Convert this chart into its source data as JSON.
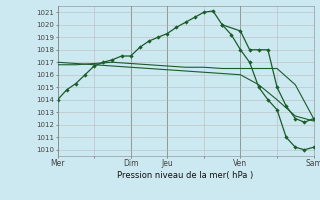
{
  "title": "Pression niveau de la mer( hPa )",
  "bg_color": "#cce8f0",
  "grid_color": "#bbbbbb",
  "line_color": "#1a5c2a",
  "ylim": [
    1009.5,
    1021.5
  ],
  "yticks": [
    1010,
    1011,
    1012,
    1013,
    1014,
    1015,
    1016,
    1017,
    1018,
    1019,
    1020,
    1021
  ],
  "day_labels": [
    "Mer",
    "",
    "Dim",
    "Jeu",
    "",
    "Ven",
    "",
    "Sam"
  ],
  "day_positions": [
    0,
    1,
    2,
    3,
    4,
    5,
    6,
    7
  ],
  "vline_positions": [
    0,
    2,
    3,
    5,
    7
  ],
  "series1_x": [
    0,
    0.25,
    0.5,
    0.75,
    1.0,
    1.25,
    1.5,
    1.75,
    2.0,
    2.25,
    2.5,
    2.75,
    3.0,
    3.25,
    3.5,
    3.75,
    4.0,
    4.25,
    4.5,
    5.0,
    5.25,
    5.5,
    5.75,
    6.0,
    6.25,
    6.5,
    6.75,
    7.0
  ],
  "series1_y": [
    1014.0,
    1014.8,
    1015.3,
    1016.0,
    1016.7,
    1017.0,
    1017.2,
    1017.5,
    1017.5,
    1018.2,
    1018.7,
    1019.0,
    1019.3,
    1019.8,
    1020.2,
    1020.6,
    1021.0,
    1021.1,
    1020.0,
    1019.5,
    1018.0,
    1018.0,
    1018.0,
    1015.0,
    1013.5,
    1012.5,
    1012.2,
    1012.5
  ],
  "series2_x": [
    0,
    0.5,
    1.0,
    1.5,
    2.0,
    2.5,
    3.0,
    3.5,
    4.0,
    4.5,
    5.0,
    5.5,
    6.0,
    6.5,
    7.0
  ],
  "series2_y": [
    1016.8,
    1016.8,
    1016.9,
    1017.0,
    1016.9,
    1016.8,
    1016.7,
    1016.6,
    1016.6,
    1016.5,
    1016.5,
    1016.5,
    1016.5,
    1015.2,
    1012.5
  ],
  "series3_x": [
    0,
    0.5,
    1.0,
    1.5,
    2.0,
    2.5,
    3.0,
    3.5,
    4.0,
    4.5,
    5.0,
    5.5,
    6.0,
    6.5,
    7.0
  ],
  "series3_y": [
    1017.0,
    1016.9,
    1016.8,
    1016.7,
    1016.6,
    1016.5,
    1016.4,
    1016.3,
    1016.2,
    1016.1,
    1016.0,
    1015.2,
    1014.0,
    1012.7,
    1012.3
  ],
  "series4_x": [
    4.5,
    4.75,
    5.0,
    5.25,
    5.5,
    5.75,
    6.0,
    6.25,
    6.5,
    6.75,
    7.0
  ],
  "series4_y": [
    1020.0,
    1019.2,
    1018.0,
    1017.0,
    1015.0,
    1014.0,
    1013.2,
    1011.0,
    1010.2,
    1010.0,
    1010.2
  ]
}
